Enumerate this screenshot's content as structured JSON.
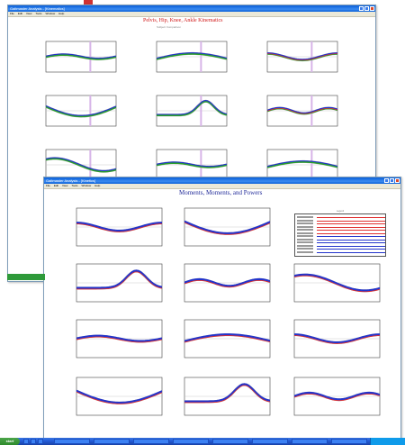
{
  "back_window": {
    "title": "Gaitmaster Analysis - [Kinematics]",
    "menu": [
      "File",
      "Edit",
      "View",
      "Tools",
      "Window",
      "Help"
    ],
    "plot_title": "Pelvis, Hip, Knee, Ankle Kinematics",
    "plot_subtitle": "Subject Comparison"
  },
  "front_window": {
    "title": "Gaitmaster Analysis - [Kinetics]",
    "menu": [
      "File",
      "Edit",
      "View",
      "Tools",
      "Window",
      "Help"
    ],
    "plot_title": "Moments, Moments, and Powers",
    "legend_title": "Legend"
  },
  "taskbar": {
    "start_label": "start"
  },
  "colors": {
    "red": "#e03030",
    "blue": "#2233cc",
    "green": "#2aa02a",
    "gray": "#b0b0b0",
    "xp_blue": "#245edb"
  }
}
